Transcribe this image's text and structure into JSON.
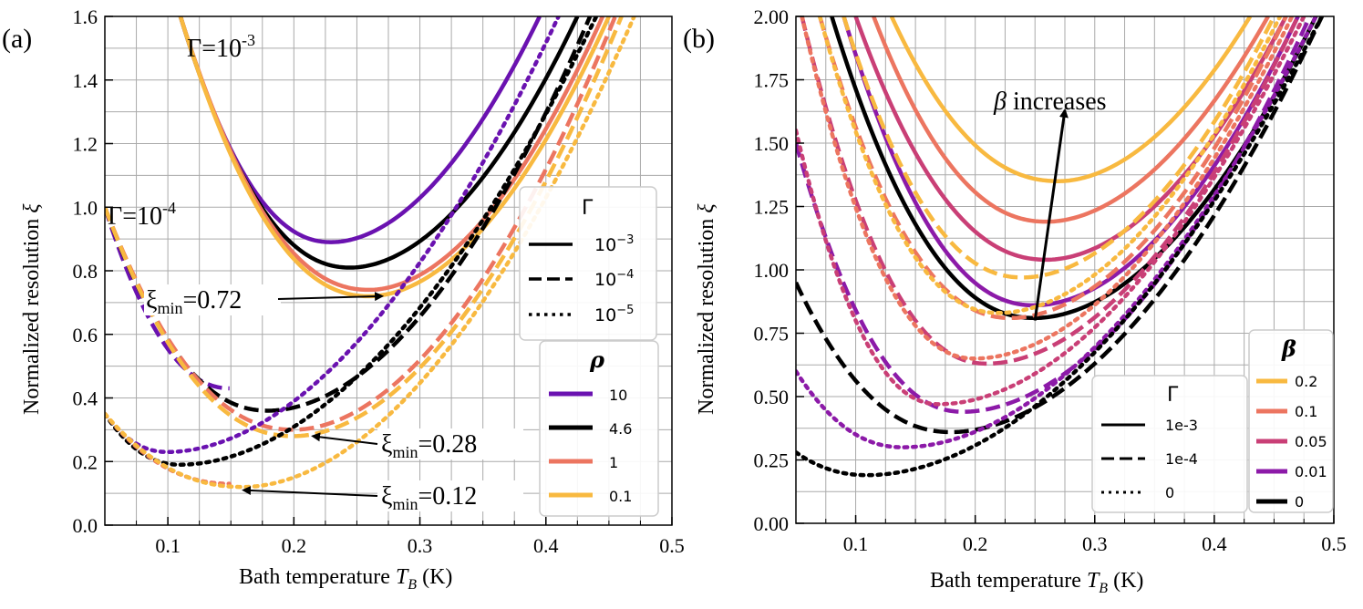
{
  "chart_data": [
    {
      "type": "line",
      "panel_label": "(a)",
      "xlabel": "Bath temperature",
      "xlabel_symbol": "T",
      "xlabel_sub": "B",
      "xlabel_unit": "(K)",
      "ylabel": "Normalized resolution",
      "ylabel_symbol": "ξ",
      "xlim": [
        0.05,
        0.5
      ],
      "ylim": [
        0.0,
        1.6
      ],
      "xticks": [
        0.1,
        0.2,
        0.3,
        0.4,
        0.5
      ],
      "yticks": [
        0.0,
        0.2,
        0.4,
        0.6,
        0.8,
        1.0,
        1.2,
        1.4,
        1.6
      ],
      "xtick_labels": [
        "0.1",
        "0.2",
        "0.3",
        "0.4",
        "0.5"
      ],
      "ytick_labels": [
        "0.0",
        "0.2",
        "0.4",
        "0.6",
        "0.8",
        "1.0",
        "1.2",
        "1.4",
        "1.6"
      ],
      "grid": true,
      "colors": {
        "10": "#6a12b0",
        "4.6": "#000000",
        "1": "#ec7560",
        "0.1": "#f8b940"
      },
      "series": [
        {
          "rho": "10",
          "gamma": "1e-3",
          "style": "solid",
          "min_x": 0.23,
          "min_y": 0.89,
          "left_anchor": [
            0.11,
            1.6
          ],
          "right_anchor": [
            0.395,
            1.6
          ]
        },
        {
          "rho": "4.6",
          "gamma": "1e-3",
          "style": "solid",
          "min_x": 0.245,
          "min_y": 0.81,
          "left_anchor": [
            0.11,
            1.6
          ],
          "right_anchor": [
            0.425,
            1.6
          ]
        },
        {
          "rho": "1",
          "gamma": "1e-3",
          "style": "solid",
          "min_x": 0.26,
          "min_y": 0.74,
          "left_anchor": [
            0.11,
            1.6
          ],
          "right_anchor": [
            0.445,
            1.6
          ]
        },
        {
          "rho": "0.1",
          "gamma": "1e-3",
          "style": "solid",
          "min_x": 0.26,
          "min_y": 0.72,
          "left_anchor": [
            0.11,
            1.6
          ],
          "right_anchor": [
            0.45,
            1.6
          ]
        },
        {
          "rho": "10",
          "gamma": "1e-4",
          "style": "dashed",
          "min_x": 0.15,
          "min_y": 0.43,
          "left_anchor": [
            0.05,
            1.0
          ],
          "right_anchor": [
            0.405,
            1.6
          ]
        },
        {
          "rho": "4.6",
          "gamma": "1e-4",
          "style": "dashed",
          "min_x": 0.18,
          "min_y": 0.36,
          "left_anchor": [
            0.05,
            1.0
          ],
          "right_anchor": [
            0.435,
            1.6
          ]
        },
        {
          "rho": "1",
          "gamma": "1e-4",
          "style": "dashed",
          "min_x": 0.2,
          "min_y": 0.3,
          "left_anchor": [
            0.05,
            1.0
          ],
          "right_anchor": [
            0.455,
            1.6
          ]
        },
        {
          "rho": "0.1",
          "gamma": "1e-4",
          "style": "dashed",
          "min_x": 0.2,
          "min_y": 0.28,
          "left_anchor": [
            0.05,
            1.0
          ],
          "right_anchor": [
            0.46,
            1.6
          ]
        },
        {
          "rho": "10",
          "gamma": "1e-5",
          "style": "dotted",
          "min_x": 0.1,
          "min_y": 0.23,
          "left_anchor": [
            0.05,
            0.35
          ],
          "right_anchor": [
            0.41,
            1.6
          ]
        },
        {
          "rho": "4.6",
          "gamma": "1e-5",
          "style": "dotted",
          "min_x": 0.11,
          "min_y": 0.19,
          "left_anchor": [
            0.05,
            0.35
          ],
          "right_anchor": [
            0.44,
            1.6
          ]
        },
        {
          "rho": "1",
          "gamma": "1e-5",
          "style": "dotted",
          "min_x": 0.15,
          "min_y": 0.13,
          "left_anchor": [
            0.05,
            0.35
          ],
          "right_anchor": [
            0.46,
            1.6
          ]
        },
        {
          "rho": "0.1",
          "gamma": "1e-5",
          "style": "dotted",
          "min_x": 0.16,
          "min_y": 0.12,
          "left_anchor": [
            0.05,
            0.35
          ],
          "right_anchor": [
            0.47,
            1.6
          ]
        }
      ],
      "annotations": [
        {
          "base": "Γ=10",
          "sup": "-3"
        },
        {
          "base": "Γ=10",
          "sup": "-4"
        },
        {
          "base": "ξ",
          "sub": "min",
          "tail": "=0.72",
          "arrow_to": [
            0.27,
            0.72
          ]
        },
        {
          "base": "ξ",
          "sub": "min",
          "tail": "=0.28",
          "arrow_to": [
            0.215,
            0.28
          ]
        },
        {
          "base": "ξ",
          "sub": "min",
          "tail": "=0.12",
          "arrow_to": [
            0.16,
            0.11
          ]
        }
      ],
      "legend_gamma": {
        "title": "Γ",
        "location": "right",
        "entries": [
          {
            "base": "10",
            "sup": "−3",
            "style": "solid"
          },
          {
            "base": "10",
            "sup": "−4",
            "style": "dashed"
          },
          {
            "base": "10",
            "sup": "−5",
            "style": "dotted"
          }
        ]
      },
      "legend_rho": {
        "title": "ρ",
        "location": "lower-right",
        "entries": [
          "10",
          "4.6",
          "1",
          "0.1"
        ]
      }
    },
    {
      "type": "line",
      "panel_label": "(b)",
      "xlabel": "Bath temperature",
      "xlabel_symbol": "T",
      "xlabel_sub": "B",
      "xlabel_unit": "(K)",
      "ylabel": "Normalized resolution",
      "ylabel_symbol": "ξ",
      "xlim": [
        0.05,
        0.5
      ],
      "ylim": [
        0.0,
        2.0
      ],
      "xticks": [
        0.1,
        0.2,
        0.3,
        0.4,
        0.5
      ],
      "yticks": [
        0.0,
        0.25,
        0.5,
        0.75,
        1.0,
        1.25,
        1.5,
        1.75,
        2.0
      ],
      "xtick_labels": [
        "0.1",
        "0.2",
        "0.3",
        "0.4",
        "0.5"
      ],
      "ytick_labels": [
        "0.00",
        "0.25",
        "0.50",
        "0.75",
        "1.00",
        "1.25",
        "1.50",
        "1.75",
        "2.00"
      ],
      "grid": true,
      "colors": {
        "0.2": "#f8b940",
        "0.1": "#ec7560",
        "0.05": "#c93f76",
        "0.01": "#8c1aa8",
        "0": "#000000"
      },
      "series": [
        {
          "beta": "0.2",
          "gamma": "1e-3",
          "style": "solid",
          "min_x": 0.27,
          "min_y": 1.35,
          "left_anchor": [
            0.13,
            2.0
          ],
          "right_anchor": [
            0.43,
            2.0
          ]
        },
        {
          "beta": "0.1",
          "gamma": "1e-3",
          "style": "solid",
          "min_x": 0.26,
          "min_y": 1.19,
          "left_anchor": [
            0.115,
            2.0
          ],
          "right_anchor": [
            0.445,
            2.0
          ]
        },
        {
          "beta": "0.05",
          "gamma": "1e-3",
          "style": "solid",
          "min_x": 0.26,
          "min_y": 1.04,
          "left_anchor": [
            0.1,
            2.0
          ],
          "right_anchor": [
            0.46,
            2.0
          ]
        },
        {
          "beta": "0.01",
          "gamma": "1e-3",
          "style": "solid",
          "min_x": 0.25,
          "min_y": 0.86,
          "left_anchor": [
            0.09,
            2.0
          ],
          "right_anchor": [
            0.47,
            2.0
          ]
        },
        {
          "beta": "0",
          "gamma": "1e-3",
          "style": "solid",
          "min_x": 0.25,
          "min_y": 0.81,
          "left_anchor": [
            0.08,
            2.0
          ],
          "right_anchor": [
            0.485,
            2.0
          ]
        },
        {
          "beta": "0.2",
          "gamma": "1e-4",
          "style": "dashed",
          "min_x": 0.24,
          "min_y": 0.97,
          "left_anchor": [
            0.09,
            2.0
          ],
          "right_anchor": [
            0.45,
            2.0
          ]
        },
        {
          "beta": "0.1",
          "gamma": "1e-4",
          "style": "dashed",
          "min_x": 0.23,
          "min_y": 0.81,
          "left_anchor": [
            0.07,
            2.0
          ],
          "right_anchor": [
            0.46,
            2.0
          ]
        },
        {
          "beta": "0.05",
          "gamma": "1e-4",
          "style": "dashed",
          "min_x": 0.21,
          "min_y": 0.63,
          "left_anchor": [
            0.055,
            2.0
          ],
          "right_anchor": [
            0.47,
            2.0
          ]
        },
        {
          "beta": "0.01",
          "gamma": "1e-4",
          "style": "dashed",
          "min_x": 0.19,
          "min_y": 0.44,
          "left_anchor": [
            0.05,
            1.5
          ],
          "right_anchor": [
            0.48,
            2.0
          ]
        },
        {
          "beta": "0",
          "gamma": "1e-4",
          "style": "dashed",
          "min_x": 0.18,
          "min_y": 0.36,
          "left_anchor": [
            0.05,
            0.95
          ],
          "right_anchor": [
            0.49,
            2.0
          ]
        },
        {
          "beta": "0.2",
          "gamma": "0",
          "style": "dotted",
          "min_x": 0.22,
          "min_y": 0.83,
          "left_anchor": [
            0.07,
            2.0
          ],
          "right_anchor": [
            0.455,
            2.0
          ]
        },
        {
          "beta": "0.1",
          "gamma": "0",
          "style": "dotted",
          "min_x": 0.2,
          "min_y": 0.65,
          "left_anchor": [
            0.055,
            2.0
          ],
          "right_anchor": [
            0.465,
            2.0
          ]
        },
        {
          "beta": "0.05",
          "gamma": "0",
          "style": "dotted",
          "min_x": 0.17,
          "min_y": 0.47,
          "left_anchor": [
            0.05,
            1.55
          ],
          "right_anchor": [
            0.475,
            2.0
          ]
        },
        {
          "beta": "0.01",
          "gamma": "0",
          "style": "dotted",
          "min_x": 0.14,
          "min_y": 0.3,
          "left_anchor": [
            0.05,
            0.6
          ],
          "right_anchor": [
            0.485,
            2.0
          ]
        },
        {
          "beta": "0",
          "gamma": "0",
          "style": "dotted",
          "min_x": 0.11,
          "min_y": 0.19,
          "left_anchor": [
            0.05,
            0.28
          ],
          "right_anchor": [
            0.49,
            2.0
          ]
        }
      ],
      "annotations": [
        {
          "symbol": "β",
          "text": " increases",
          "arrow_from": [
            0.25,
            0.8
          ],
          "arrow_to": [
            0.275,
            1.63
          ]
        }
      ],
      "legend_gamma": {
        "title": "Γ",
        "location": "lower-center",
        "entries": [
          {
            "label": "1e-3",
            "style": "solid"
          },
          {
            "label": "1e-4",
            "style": "dashed"
          },
          {
            "label": "0",
            "style": "dotted"
          }
        ]
      },
      "legend_beta": {
        "title": "β",
        "location": "lower-right",
        "entries": [
          "0.2",
          "0.1",
          "0.05",
          "0.01",
          "0"
        ]
      }
    }
  ]
}
